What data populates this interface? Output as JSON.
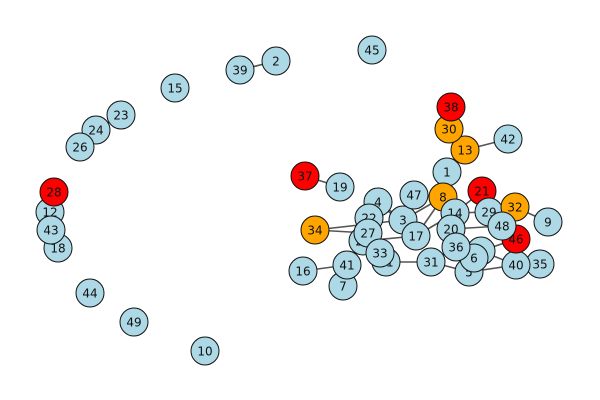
{
  "graph": {
    "colors": {
      "default": "#add8e6",
      "orange": "#ffa500",
      "red": "#ff0000",
      "edge": "#555555"
    },
    "nodes": [
      {
        "id": "0",
        "color": "default"
      },
      {
        "id": "1",
        "color": "default"
      },
      {
        "id": "2",
        "color": "default"
      },
      {
        "id": "3",
        "color": "default"
      },
      {
        "id": "4",
        "color": "default"
      },
      {
        "id": "5",
        "color": "default"
      },
      {
        "id": "6",
        "color": "default"
      },
      {
        "id": "7",
        "color": "default"
      },
      {
        "id": "8",
        "color": "orange"
      },
      {
        "id": "9",
        "color": "default"
      },
      {
        "id": "10",
        "color": "default"
      },
      {
        "id": "11",
        "color": "default"
      },
      {
        "id": "12",
        "color": "default"
      },
      {
        "id": "13",
        "color": "orange"
      },
      {
        "id": "14",
        "color": "default"
      },
      {
        "id": "15",
        "color": "default"
      },
      {
        "id": "16",
        "color": "default"
      },
      {
        "id": "17",
        "color": "default"
      },
      {
        "id": "18",
        "color": "default"
      },
      {
        "id": "19",
        "color": "default"
      },
      {
        "id": "20",
        "color": "default"
      },
      {
        "id": "21",
        "color": "red"
      },
      {
        "id": "22",
        "color": "default"
      },
      {
        "id": "23",
        "color": "default"
      },
      {
        "id": "24",
        "color": "default"
      },
      {
        "id": "25",
        "color": "default"
      },
      {
        "id": "26",
        "color": "default"
      },
      {
        "id": "27",
        "color": "default"
      },
      {
        "id": "28",
        "color": "red"
      },
      {
        "id": "29",
        "color": "default"
      },
      {
        "id": "30",
        "color": "orange"
      },
      {
        "id": "31",
        "color": "default"
      },
      {
        "id": "32",
        "color": "orange"
      },
      {
        "id": "33",
        "color": "default"
      },
      {
        "id": "34",
        "color": "orange"
      },
      {
        "id": "35",
        "color": "default"
      },
      {
        "id": "36",
        "color": "default"
      },
      {
        "id": "37",
        "color": "red"
      },
      {
        "id": "38",
        "color": "red"
      },
      {
        "id": "39",
        "color": "default"
      },
      {
        "id": "40",
        "color": "default"
      },
      {
        "id": "41",
        "color": "default"
      },
      {
        "id": "42",
        "color": "default"
      },
      {
        "id": "43",
        "color": "default"
      },
      {
        "id": "44",
        "color": "default"
      },
      {
        "id": "45",
        "color": "default"
      },
      {
        "id": "46",
        "color": "red"
      },
      {
        "id": "47",
        "color": "default"
      },
      {
        "id": "48",
        "color": "default"
      },
      {
        "id": "49",
        "color": "default"
      }
    ],
    "edges": [
      [
        "2",
        "39"
      ],
      [
        "42",
        "13"
      ],
      [
        "13",
        "30"
      ],
      [
        "30",
        "38"
      ],
      [
        "13",
        "1"
      ],
      [
        "1",
        "8"
      ],
      [
        "8",
        "47"
      ],
      [
        "19",
        "37"
      ],
      [
        "3",
        "4"
      ],
      [
        "3",
        "34"
      ],
      [
        "27",
        "34"
      ],
      [
        "4",
        "17"
      ],
      [
        "22",
        "33"
      ],
      [
        "33",
        "11"
      ],
      [
        "11",
        "31"
      ],
      [
        "41",
        "16"
      ],
      [
        "41",
        "7"
      ],
      [
        "41",
        "25"
      ],
      [
        "31",
        "5"
      ],
      [
        "5",
        "40"
      ],
      [
        "40",
        "35"
      ],
      [
        "6",
        "36"
      ],
      [
        "36",
        "20"
      ],
      [
        "20",
        "14"
      ],
      [
        "14",
        "8"
      ],
      [
        "14",
        "21"
      ],
      [
        "20",
        "48"
      ],
      [
        "29",
        "32"
      ],
      [
        "32",
        "9"
      ],
      [
        "48",
        "46"
      ],
      [
        "46",
        "0"
      ],
      [
        "0",
        "6"
      ],
      [
        "17",
        "8"
      ],
      [
        "17",
        "14"
      ],
      [
        "3",
        "8"
      ],
      [
        "12",
        "28"
      ],
      [
        "12",
        "43"
      ],
      [
        "43",
        "18"
      ],
      [
        "24",
        "23"
      ],
      [
        "24",
        "26"
      ],
      [
        "14",
        "29"
      ],
      [
        "20",
        "0"
      ],
      [
        "17",
        "25"
      ],
      [
        "22",
        "27"
      ],
      [
        "31",
        "36"
      ],
      [
        "0",
        "40"
      ]
    ]
  }
}
